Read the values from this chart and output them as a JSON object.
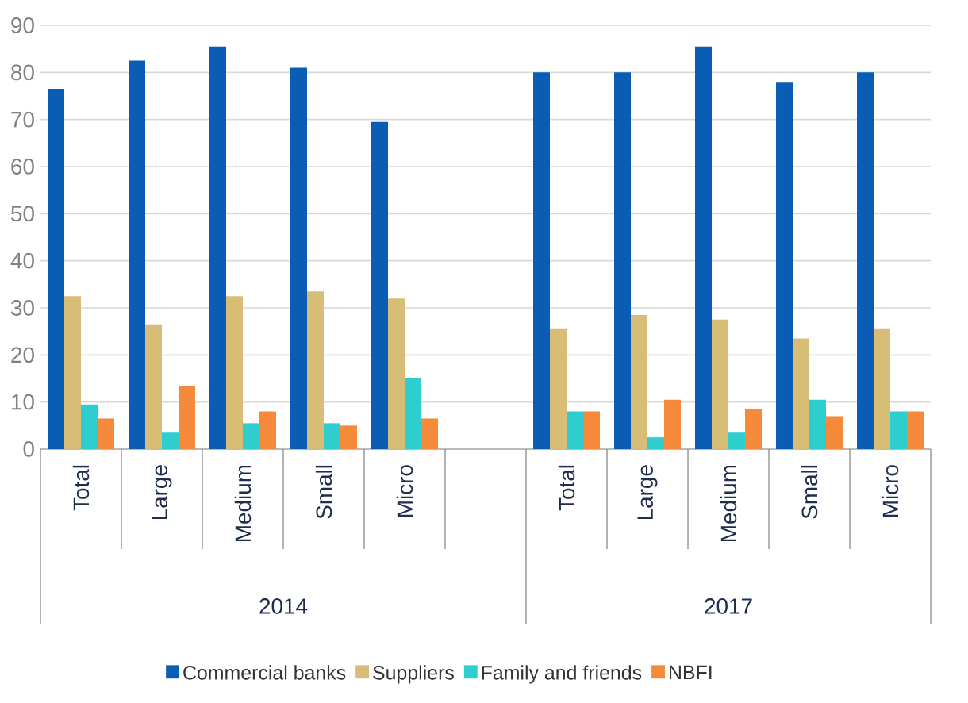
{
  "chart_data": {
    "type": "bar",
    "categories": [
      "Total",
      "Large",
      "Medium",
      "Small",
      "Micro",
      null,
      "Total",
      "Large",
      "Medium",
      "Small",
      "Micro"
    ],
    "series": [
      {
        "name": "Commercial banks",
        "color": "#0b5cb5",
        "values": [
          76.5,
          82.5,
          85.5,
          81,
          69.5,
          null,
          80,
          80,
          85.5,
          78,
          80
        ]
      },
      {
        "name": "Suppliers",
        "color": "#d8bd76",
        "values": [
          32.5,
          26.5,
          32.5,
          33.5,
          32,
          null,
          25.5,
          28.5,
          27.5,
          23.5,
          25.5
        ]
      },
      {
        "name": "Family and friends",
        "color": "#2ecece",
        "values": [
          9.5,
          3.5,
          5.5,
          5.5,
          15,
          null,
          8,
          2.5,
          3.5,
          10.5,
          8
        ]
      },
      {
        "name": "NBFI",
        "color": "#f58a3b",
        "values": [
          6.5,
          13.5,
          8,
          5,
          6.5,
          null,
          8,
          10.5,
          8.5,
          7,
          8
        ]
      }
    ],
    "annotations": [
      "2014",
      "2017"
    ],
    "ylim": [
      0,
      90
    ],
    "yticks": [
      0,
      10,
      20,
      30,
      40,
      50,
      60,
      70,
      80,
      90
    ],
    "grid": "y",
    "legend": "bottom"
  }
}
